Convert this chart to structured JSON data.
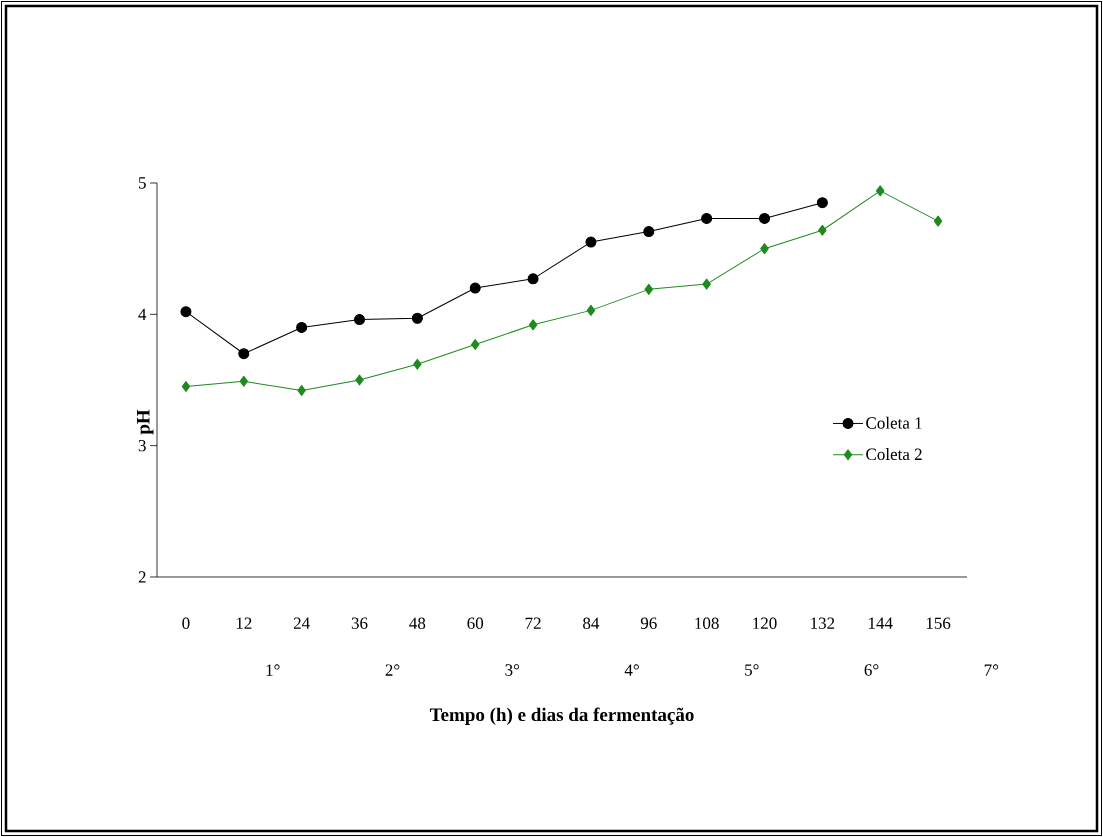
{
  "chart_data": {
    "type": "line",
    "xlabel": "Tempo (h) e dias da fermentação",
    "ylabel": "pH",
    "categories": [
      "0",
      "12",
      "24",
      "36",
      "48",
      "60",
      "72",
      "84",
      "96",
      "108",
      "120",
      "132",
      "144",
      "156"
    ],
    "series": [
      {
        "name": "Coleta 1",
        "color": "#000000",
        "marker": "circle",
        "values": [
          4.02,
          3.7,
          3.9,
          3.96,
          3.97,
          4.2,
          4.27,
          4.55,
          4.63,
          4.73,
          4.73,
          4.85,
          null,
          null
        ]
      },
      {
        "name": "Coleta 2",
        "color": "#1f8a1f",
        "marker": "diamond",
        "values": [
          3.45,
          3.49,
          3.42,
          3.5,
          3.62,
          3.77,
          3.92,
          4.03,
          4.19,
          4.23,
          4.5,
          4.64,
          4.94,
          4.71
        ]
      }
    ],
    "ylim": [
      2,
      5
    ],
    "yticks": [
      2,
      3,
      4,
      5
    ],
    "grid": false,
    "legend": "right",
    "line_style": "solid",
    "annotations": [
      "1°",
      "2°",
      "3°",
      "4°",
      "5°",
      "6°",
      "7°"
    ]
  }
}
